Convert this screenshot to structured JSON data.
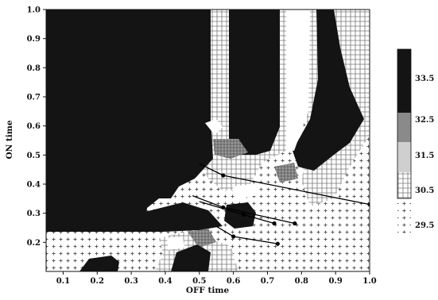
{
  "chart_data": {
    "type": "heatmap",
    "title": "",
    "xlabel": "OFF time",
    "ylabel": "ON time",
    "xlim": [
      0.05,
      1.0
    ],
    "ylim": [
      0.1,
      1.0
    ],
    "x_ticks": [
      "0.1",
      "0.2",
      "0.3",
      "0.4",
      "0.5",
      "0.6",
      "0.7",
      "0.8",
      "0.9",
      "1.0"
    ],
    "y_ticks": [
      "0.2",
      "0.3",
      "0.4",
      "0.5",
      "0.6",
      "0.7",
      "0.8",
      "0.9",
      "1.0"
    ],
    "colorbar": {
      "levels": [
        "33.5",
        "32.5",
        "31.5",
        "30.5",
        "29.5"
      ],
      "fills": [
        "#141414",
        "#8a8a8a",
        "#cfcfcf",
        "#f4f4f4",
        "#ffffff"
      ]
    },
    "trajectories": [
      [
        [
          0.5,
          0.47
        ],
        [
          0.57,
          0.43
        ],
        [
          1.0,
          0.33
        ]
      ],
      [
        [
          0.48,
          0.36
        ],
        [
          0.57,
          0.32
        ],
        [
          0.78,
          0.265
        ]
      ],
      [
        [
          0.5,
          0.34
        ],
        [
          0.63,
          0.295
        ],
        [
          0.72,
          0.265
        ]
      ],
      [
        [
          0.55,
          0.255
        ],
        [
          0.6,
          0.22
        ],
        [
          0.73,
          0.195
        ]
      ]
    ]
  }
}
